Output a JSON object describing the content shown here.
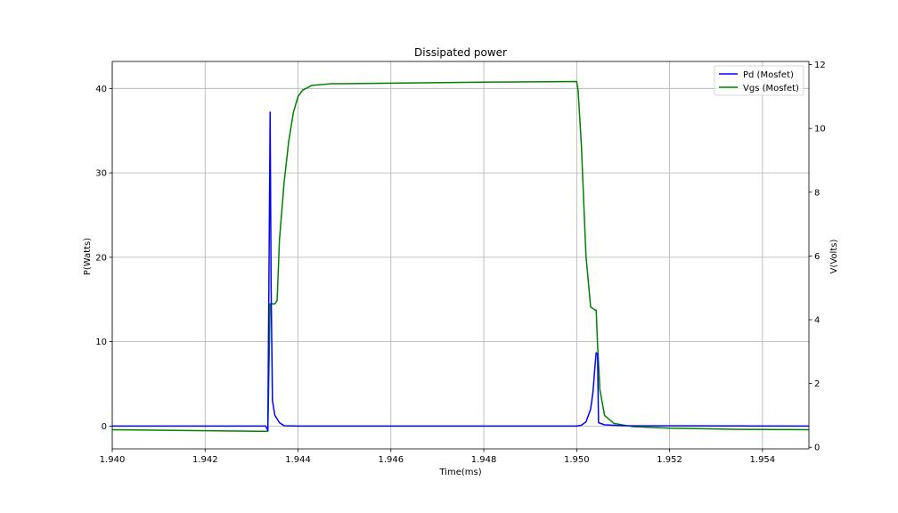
{
  "chart_data": {
    "type": "line",
    "title": "Dissipated power",
    "xlabel": "Time(ms)",
    "ylabel": "P(Watts)",
    "y2label": "V(Volts)",
    "xlim": [
      1.94,
      1.955
    ],
    "ylim": [
      -2.7,
      43.2
    ],
    "y2lim": [
      -0.05,
      12.1
    ],
    "xticks": [
      "1.940",
      "1.942",
      "1.944",
      "1.946",
      "1.948",
      "1.950",
      "1.952",
      "1.954"
    ],
    "yticks": [
      "0",
      "10",
      "20",
      "30",
      "40"
    ],
    "y2ticks": [
      "0",
      "2",
      "4",
      "6",
      "8",
      "10",
      "12"
    ],
    "grid": true,
    "legend_position": "top-right",
    "series": [
      {
        "name": "Pd (Mosfet)",
        "axis": "left",
        "color": "#0000ff",
        "points": [
          [
            1.94,
            0.0
          ],
          [
            1.9433,
            0.0
          ],
          [
            1.94335,
            -0.5
          ],
          [
            1.9434,
            37.2
          ],
          [
            1.94342,
            16.5
          ],
          [
            1.94345,
            3.0
          ],
          [
            1.9435,
            1.3
          ],
          [
            1.9436,
            0.4
          ],
          [
            1.9437,
            0.05
          ],
          [
            1.944,
            0.0
          ],
          [
            1.95,
            0.0
          ],
          [
            1.9501,
            0.1
          ],
          [
            1.9502,
            0.5
          ],
          [
            1.9503,
            2.0
          ],
          [
            1.95035,
            4.0
          ],
          [
            1.9504,
            7.5
          ],
          [
            1.95042,
            8.7
          ],
          [
            1.95045,
            8.5
          ],
          [
            1.95047,
            0.4
          ],
          [
            1.9506,
            0.15
          ],
          [
            1.951,
            0.05
          ],
          [
            1.955,
            0.0
          ]
        ]
      },
      {
        "name": "Vgs (Mosfet)",
        "axis": "right",
        "color": "#008000",
        "points": [
          [
            1.94,
            0.55
          ],
          [
            1.9432,
            0.5
          ],
          [
            1.94335,
            0.5
          ],
          [
            1.9434,
            4.5
          ],
          [
            1.9435,
            4.5
          ],
          [
            1.94355,
            4.6
          ],
          [
            1.9436,
            6.5
          ],
          [
            1.9437,
            8.3
          ],
          [
            1.9438,
            9.6
          ],
          [
            1.9439,
            10.5
          ],
          [
            1.944,
            11.0
          ],
          [
            1.9441,
            11.2
          ],
          [
            1.9443,
            11.35
          ],
          [
            1.9447,
            11.4
          ],
          [
            1.946,
            11.42
          ],
          [
            1.948,
            11.45
          ],
          [
            1.95,
            11.47
          ],
          [
            1.95003,
            11.2
          ],
          [
            1.9501,
            9.5
          ],
          [
            1.9502,
            6.0
          ],
          [
            1.9503,
            4.4
          ],
          [
            1.9504,
            4.3
          ],
          [
            1.95042,
            4.3
          ],
          [
            1.95045,
            3.2
          ],
          [
            1.9505,
            1.8
          ],
          [
            1.9506,
            1.0
          ],
          [
            1.9508,
            0.75
          ],
          [
            1.9512,
            0.65
          ],
          [
            1.952,
            0.6
          ],
          [
            1.9535,
            0.56
          ],
          [
            1.955,
            0.55
          ]
        ]
      }
    ]
  }
}
